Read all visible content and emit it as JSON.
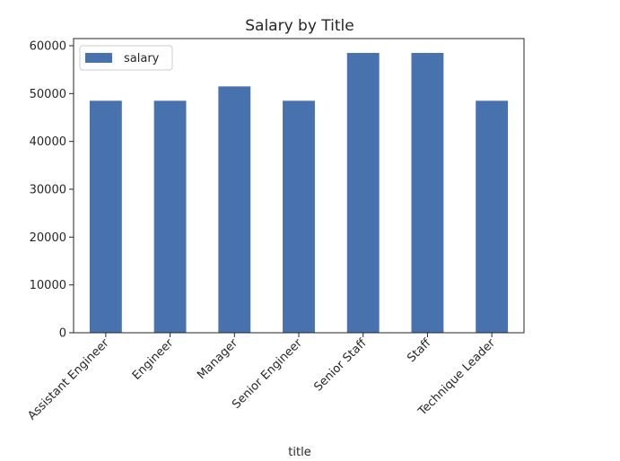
{
  "chart_data": {
    "type": "bar",
    "title": "Salary by Title",
    "xlabel": "title",
    "ylabel": "",
    "categories": [
      "Assistant Engineer",
      "Engineer",
      "Manager",
      "Senior Engineer",
      "Senior Staff",
      "Staff",
      "Technique Leader"
    ],
    "series": [
      {
        "name": "salary",
        "values": [
          48500,
          48500,
          51500,
          48500,
          58500,
          58500,
          48500
        ]
      }
    ],
    "ylim": [
      0,
      61500
    ],
    "yticks": [
      0,
      10000,
      20000,
      30000,
      40000,
      50000,
      60000
    ],
    "legend": "top-left",
    "grid": false,
    "colors": {
      "bar": "#4872AD",
      "axis": "#262626"
    }
  }
}
